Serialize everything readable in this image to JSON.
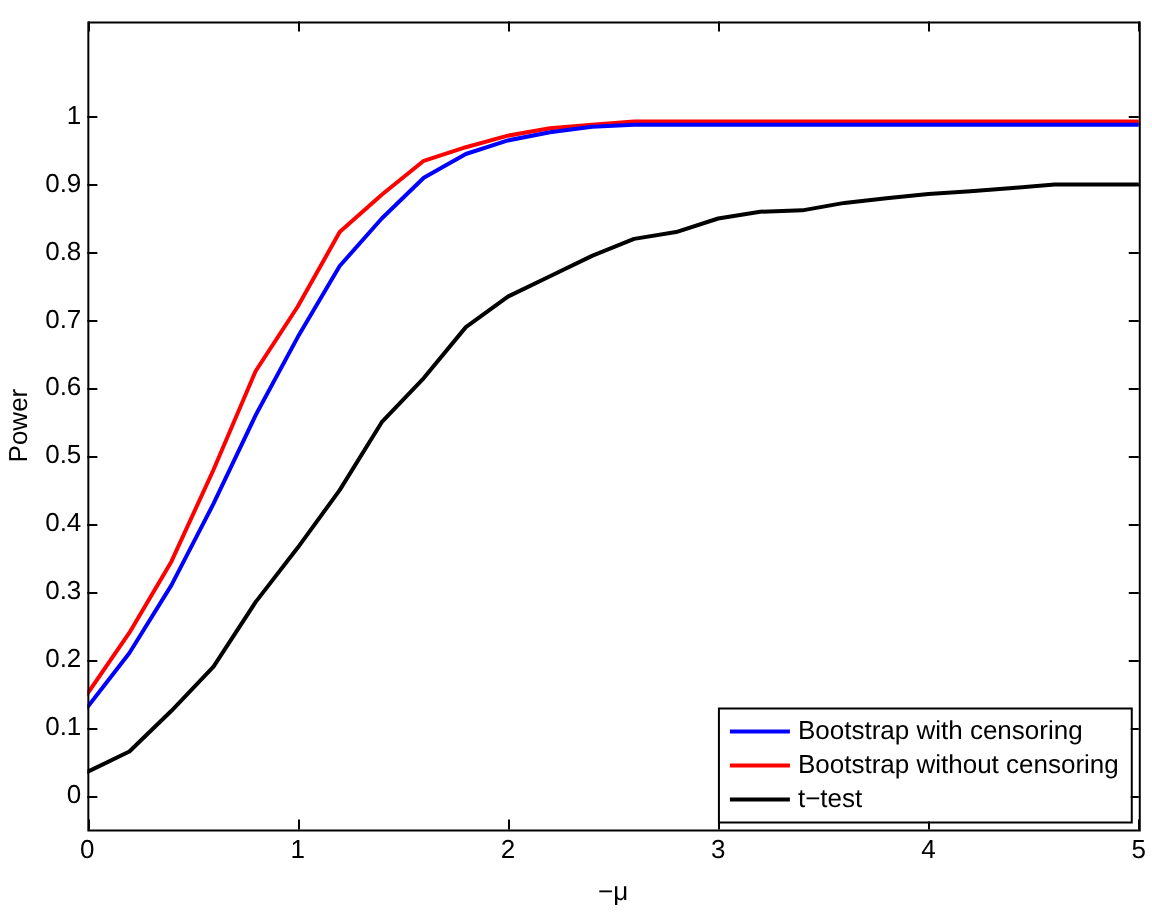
{
  "chart_data": {
    "type": "line",
    "xlabel": "−μ",
    "ylabel": "Power",
    "x": [
      0,
      0.2,
      0.4,
      0.6,
      0.8,
      1.0,
      1.2,
      1.4,
      1.6,
      1.8,
      2.0,
      2.2,
      2.4,
      2.6,
      2.8,
      3.0,
      3.2,
      3.4,
      3.6,
      3.8,
      4.0,
      4.2,
      4.4,
      4.6,
      4.8,
      5.0
    ],
    "series": [
      {
        "name": "Bootstrap with censoring",
        "color": "#0000ff",
        "values": [
          0.13,
          0.21,
          0.31,
          0.43,
          0.56,
          0.675,
          0.78,
          0.85,
          0.91,
          0.945,
          0.965,
          0.977,
          0.985,
          0.988,
          0.988,
          0.988,
          0.988,
          0.988,
          0.988,
          0.988,
          0.988,
          0.988,
          0.988,
          0.988,
          0.988,
          0.988
        ]
      },
      {
        "name": "Bootstrap without censoring",
        "color": "#ff0000",
        "values": [
          0.15,
          0.24,
          0.345,
          0.48,
          0.625,
          0.72,
          0.83,
          0.885,
          0.935,
          0.955,
          0.972,
          0.983,
          0.988,
          0.993,
          0.993,
          0.993,
          0.993,
          0.993,
          0.993,
          0.993,
          0.993,
          0.993,
          0.993,
          0.993,
          0.993,
          0.993
        ]
      },
      {
        "name": "t−test",
        "color": "#000000",
        "values": [
          0.035,
          0.065,
          0.125,
          0.19,
          0.285,
          0.365,
          0.45,
          0.55,
          0.615,
          0.69,
          0.735,
          0.765,
          0.795,
          0.82,
          0.83,
          0.85,
          0.86,
          0.862,
          0.873,
          0.88,
          0.886,
          0.89,
          0.895,
          0.9,
          0.9,
          0.9
        ]
      }
    ],
    "xlim": [
      0,
      5
    ],
    "xticks": [
      0,
      1,
      2,
      3,
      4,
      5
    ],
    "ylim": [
      -0.05,
      1.14
    ],
    "yticks": [
      0,
      0.1,
      0.2,
      0.3,
      0.4,
      0.5,
      0.6,
      0.7,
      0.8,
      0.9,
      1
    ],
    "grid": false,
    "legend": "bottom right",
    "marker": "none",
    "line_style": "solid"
  }
}
